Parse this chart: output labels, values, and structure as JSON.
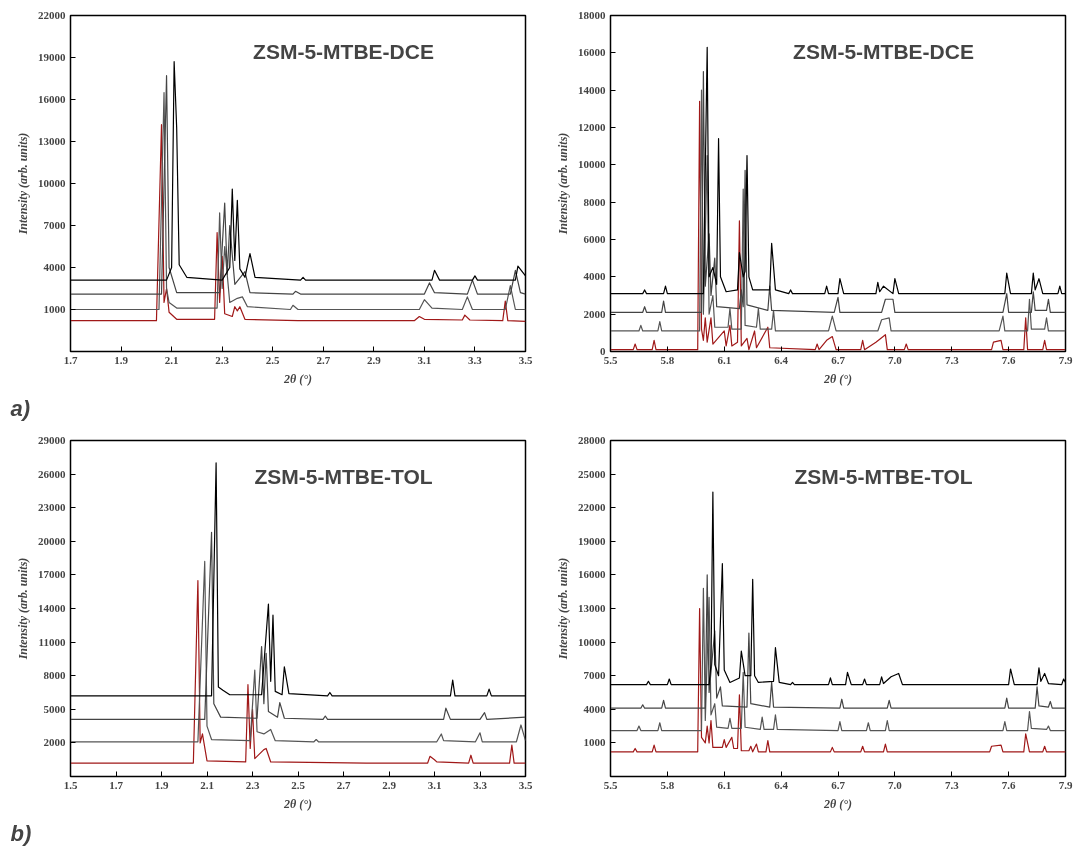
{
  "chart_data": [
    {
      "type": "line",
      "title": "ZSM-5-MTBE-DCE",
      "xlabel": "2θ (°)",
      "ylabel": "Intensity (arb. units)",
      "annotations": [
        "a)"
      ],
      "grid": false,
      "marker": "none",
      "line_style": "solid",
      "xlim": [
        1.7,
        3.5
      ],
      "xticks": [
        1.7,
        1.9,
        2.1,
        2.3,
        2.5,
        2.7,
        2.9,
        3.1,
        3.3,
        3.5
      ],
      "ylim": [
        -2000,
        22000
      ],
      "yticks": [
        1000,
        4000,
        7000,
        10000,
        13000,
        16000,
        19000,
        22000
      ],
      "series": [
        {
          "color": "#a01818",
          "x": [
            1.7,
            2.04,
            2.06,
            2.07,
            2.08,
            2.09,
            2.12,
            2.27,
            2.28,
            2.29,
            2.3,
            2.31,
            2.34,
            2.35,
            2.36,
            2.37,
            2.39,
            2.6,
            3.06,
            3.08,
            3.1,
            3.25,
            3.26,
            3.28,
            3.41,
            3.42,
            3.43,
            3.5
          ],
          "values": [
            200,
            200,
            14200,
            1500,
            2500,
            800,
            300,
            300,
            6500,
            1500,
            4800,
            700,
            500,
            1200,
            900,
            1200,
            300,
            200,
            200,
            500,
            300,
            250,
            600,
            250,
            200,
            1600,
            200,
            150
          ]
        },
        {
          "color": "#555555",
          "x": [
            1.7,
            2.05,
            2.07,
            2.08,
            2.09,
            2.12,
            2.28,
            2.29,
            2.3,
            2.31,
            2.33,
            2.36,
            2.38,
            2.4,
            2.57,
            2.58,
            2.6,
            3.08,
            3.1,
            3.13,
            3.25,
            3.27,
            3.29,
            3.42,
            3.44,
            3.46,
            3.5
          ],
          "values": [
            1000,
            1000,
            16500,
            2500,
            1500,
            1100,
            1100,
            7900,
            2500,
            5500,
            1500,
            1800,
            1900,
            1200,
            1000,
            1300,
            1000,
            1000,
            1700,
            1100,
            1000,
            1900,
            1000,
            1000,
            2700,
            1000,
            1000
          ]
        },
        {
          "color": "#444444",
          "x": [
            1.7,
            2.06,
            2.08,
            2.09,
            2.12,
            2.29,
            2.31,
            2.32,
            2.33,
            2.35,
            2.39,
            2.41,
            2.58,
            2.59,
            2.61,
            3.1,
            3.12,
            3.14,
            3.27,
            3.29,
            3.31,
            3.44,
            3.46,
            3.48,
            3.5
          ],
          "values": [
            2100,
            2100,
            17700,
            4000,
            2200,
            2200,
            8600,
            3500,
            7000,
            2800,
            3700,
            2200,
            2100,
            2300,
            2100,
            2100,
            2900,
            2200,
            2100,
            3100,
            2100,
            2100,
            3800,
            2200,
            2100
          ]
        },
        {
          "color": "#000000",
          "x": [
            1.7,
            2.08,
            2.1,
            2.11,
            2.12,
            2.13,
            2.16,
            2.3,
            2.33,
            2.34,
            2.35,
            2.36,
            2.37,
            2.39,
            2.41,
            2.43,
            2.61,
            2.62,
            2.63,
            3.13,
            3.14,
            3.16,
            3.29,
            3.3,
            3.31,
            3.46,
            3.47,
            3.5
          ],
          "values": [
            3100,
            3100,
            4000,
            18700,
            14000,
            4200,
            3300,
            3100,
            4000,
            9600,
            4500,
            8800,
            3900,
            3300,
            5000,
            3300,
            3100,
            3300,
            3100,
            3100,
            3800,
            3100,
            3100,
            3400,
            3100,
            3100,
            4100,
            3400
          ]
        }
      ]
    },
    {
      "type": "line",
      "title": "ZSM-5-MTBE-DCE",
      "xlabel": "2θ (°)",
      "ylabel": "Intensity (arb. units)",
      "grid": false,
      "marker": "none",
      "line_style": "solid",
      "xlim": [
        5.5,
        7.9
      ],
      "xticks": [
        5.5,
        5.8,
        6.1,
        6.4,
        6.7,
        {
          "value": 7.0,
          "label": "7.0"
        },
        7.3,
        7.6,
        7.9
      ],
      "ylim": [
        0,
        18000
      ],
      "yticks": [
        0,
        2000,
        4000,
        6000,
        8000,
        10000,
        12000,
        14000,
        16000,
        18000
      ],
      "series": [
        {
          "color": "#a01818",
          "x": [
            5.5,
            5.62,
            5.63,
            5.64,
            5.72,
            5.73,
            5.74,
            5.96,
            5.97,
            5.98,
            5.99,
            6.0,
            6.01,
            6.03,
            6.04,
            6.1,
            6.11,
            6.13,
            6.14,
            6.17,
            6.18,
            6.19,
            6.22,
            6.23,
            6.26,
            6.27,
            6.33,
            6.34,
            6.58,
            6.59,
            6.6,
            6.64,
            6.67,
            6.69,
            6.82,
            6.83,
            6.84,
            6.9,
            6.95,
            6.96,
            7.05,
            7.06,
            7.07,
            7.51,
            7.52,
            7.56,
            7.57,
            7.68,
            7.69,
            7.7,
            7.78,
            7.79,
            7.8,
            7.9
          ],
          "values": [
            100,
            100,
            400,
            100,
            100,
            600,
            100,
            100,
            13400,
            1200,
            600,
            1800,
            500,
            1800,
            400,
            1100,
            300,
            1400,
            300,
            500,
            7000,
            300,
            700,
            100,
            1100,
            200,
            1300,
            200,
            100,
            400,
            100,
            600,
            800,
            100,
            100,
            600,
            100,
            500,
            900,
            100,
            100,
            400,
            100,
            100,
            500,
            600,
            100,
            100,
            1800,
            100,
            100,
            600,
            100,
            100
          ]
        },
        {
          "color": "#555555",
          "x": [
            5.5,
            5.65,
            5.66,
            5.67,
            5.75,
            5.76,
            5.77,
            5.97,
            5.98,
            5.99,
            6.01,
            6.02,
            6.04,
            6.05,
            6.12,
            6.13,
            6.14,
            6.19,
            6.2,
            6.21,
            6.27,
            6.28,
            6.29,
            6.35,
            6.36,
            6.37,
            6.65,
            6.67,
            6.69,
            6.91,
            6.93,
            6.97,
            6.98,
            7.55,
            7.57,
            7.58,
            7.7,
            7.71,
            7.72,
            7.79,
            7.8,
            7.81,
            7.9
          ],
          "values": [
            1100,
            1100,
            1400,
            1100,
            1100,
            1600,
            1100,
            1100,
            14000,
            2000,
            10500,
            2000,
            3000,
            1300,
            1300,
            2300,
            1200,
            1200,
            8700,
            1400,
            1300,
            2300,
            1200,
            1200,
            2200,
            1100,
            1100,
            1900,
            1100,
            1100,
            1700,
            1800,
            1100,
            1100,
            1900,
            1100,
            1100,
            2800,
            1200,
            1200,
            1800,
            1100,
            1100
          ]
        },
        {
          "color": "#444444",
          "x": [
            5.5,
            5.67,
            5.68,
            5.69,
            5.77,
            5.78,
            5.79,
            5.98,
            5.99,
            6.0,
            6.02,
            6.03,
            6.05,
            6.06,
            6.18,
            6.19,
            6.2,
            6.21,
            6.22,
            6.33,
            6.34,
            6.35,
            6.68,
            6.7,
            6.71,
            6.93,
            6.95,
            6.99,
            7.0,
            7.57,
            7.59,
            7.6,
            7.72,
            7.73,
            7.74,
            7.8,
            7.81,
            7.82,
            7.9
          ],
          "values": [
            2100,
            2100,
            2400,
            2100,
            2100,
            2700,
            2100,
            2100,
            15000,
            3500,
            6300,
            3000,
            5000,
            2400,
            2300,
            3300,
            2400,
            9700,
            2500,
            2200,
            3500,
            2200,
            2100,
            2900,
            2100,
            2100,
            2800,
            2800,
            2100,
            2100,
            3100,
            2100,
            2100,
            3200,
            2200,
            2200,
            2800,
            2100,
            2100
          ]
        },
        {
          "color": "#000000",
          "x": [
            5.5,
            5.67,
            5.68,
            5.69,
            5.78,
            5.79,
            5.8,
            5.99,
            6.01,
            6.02,
            6.04,
            6.06,
            6.07,
            6.08,
            6.11,
            6.17,
            6.18,
            6.2,
            6.21,
            6.22,
            6.23,
            6.25,
            6.34,
            6.35,
            6.37,
            6.44,
            6.45,
            6.46,
            6.63,
            6.64,
            6.65,
            6.7,
            6.71,
            6.73,
            6.9,
            6.91,
            6.92,
            6.94,
            6.99,
            7.0,
            7.02,
            7.58,
            7.59,
            7.61,
            7.72,
            7.73,
            7.74,
            7.76,
            7.78,
            7.86,
            7.87,
            7.88,
            7.9
          ],
          "values": [
            3100,
            3100,
            3300,
            3100,
            3100,
            3500,
            3100,
            3100,
            16300,
            4000,
            4500,
            3600,
            11400,
            4000,
            3200,
            3300,
            5300,
            4000,
            4300,
            10500,
            4000,
            3300,
            3300,
            5800,
            3300,
            3100,
            3300,
            3100,
            3100,
            3500,
            3100,
            3100,
            3900,
            3100,
            3100,
            3700,
            3200,
            3500,
            3100,
            3900,
            3100,
            3100,
            4200,
            3100,
            3100,
            4200,
            3300,
            3900,
            3100,
            3100,
            3500,
            3100,
            3100
          ]
        }
      ]
    },
    {
      "type": "line",
      "title": "ZSM-5-MTBE-TOL",
      "xlabel": "2θ (°)",
      "ylabel": "Intensity (arb. units)",
      "annotations": [
        "b)"
      ],
      "grid": false,
      "marker": "none",
      "line_style": "solid",
      "xlim": [
        1.5,
        3.5
      ],
      "xticks": [
        1.5,
        1.7,
        1.9,
        2.1,
        2.3,
        2.5,
        2.7,
        2.9,
        3.1,
        3.3,
        3.5
      ],
      "ylim": [
        -1000,
        29000
      ],
      "yticks": [
        2000,
        5000,
        8000,
        11000,
        14000,
        17000,
        20000,
        23000,
        26000,
        29000
      ],
      "series": [
        {
          "color": "#a01818",
          "x": [
            1.5,
            2.04,
            2.06,
            2.07,
            2.08,
            2.1,
            2.27,
            2.28,
            2.29,
            2.3,
            2.31,
            2.35,
            2.36,
            2.38,
            2.8,
            3.07,
            3.08,
            3.1,
            3.11,
            3.25,
            3.26,
            3.27,
            3.43,
            3.44,
            3.45,
            3.5
          ],
          "values": [
            200,
            200,
            16500,
            2000,
            2800,
            400,
            300,
            7200,
            1500,
            5000,
            600,
            1400,
            1500,
            300,
            200,
            200,
            800,
            500,
            300,
            200,
            900,
            200,
            200,
            1800,
            200,
            200
          ]
        },
        {
          "color": "#555555",
          "x": [
            1.5,
            2.06,
            2.09,
            2.1,
            2.12,
            2.29,
            2.31,
            2.32,
            2.35,
            2.38,
            2.4,
            2.57,
            2.58,
            2.59,
            3.11,
            3.13,
            3.14,
            3.28,
            3.3,
            3.31,
            3.46,
            3.48,
            3.5
          ],
          "values": [
            2100,
            2100,
            18200,
            3500,
            2300,
            2200,
            8500,
            3000,
            2800,
            3200,
            2200,
            2100,
            2300,
            2100,
            2100,
            2800,
            2200,
            2100,
            2900,
            2100,
            2100,
            3600,
            2200
          ]
        },
        {
          "color": "#444444",
          "x": [
            1.5,
            2.09,
            2.12,
            2.13,
            2.16,
            2.32,
            2.34,
            2.35,
            2.36,
            2.37,
            2.41,
            2.42,
            2.44,
            2.61,
            2.62,
            2.63,
            3.14,
            3.15,
            3.17,
            3.3,
            3.32,
            3.33,
            3.5
          ],
          "values": [
            4100,
            4100,
            20800,
            5500,
            4300,
            4200,
            10600,
            5500,
            10000,
            4800,
            4300,
            5600,
            4200,
            4100,
            4400,
            4100,
            4100,
            5100,
            4100,
            4100,
            4700,
            4100,
            4300
          ]
        },
        {
          "color": "#000000",
          "x": [
            1.5,
            2.12,
            2.14,
            2.15,
            2.17,
            2.2,
            2.34,
            2.37,
            2.38,
            2.39,
            2.4,
            2.43,
            2.44,
            2.46,
            2.63,
            2.64,
            2.65,
            3.17,
            3.18,
            3.19,
            3.33,
            3.34,
            3.35,
            3.5
          ],
          "values": [
            6200,
            6200,
            27000,
            7000,
            6700,
            6300,
            6300,
            14400,
            7500,
            13400,
            6600,
            6300,
            8800,
            6400,
            6200,
            6500,
            6200,
            6200,
            7600,
            6200,
            6200,
            6800,
            6200,
            6200
          ]
        }
      ]
    },
    {
      "type": "line",
      "title": "ZSM-5-MTBE-TOL",
      "xlabel": "2θ (°)",
      "ylabel": "Intensity (arb. units)",
      "grid": false,
      "marker": "none",
      "line_style": "solid",
      "xlim": [
        5.5,
        7.9
      ],
      "xticks": [
        5.5,
        5.8,
        6.1,
        6.4,
        6.7,
        {
          "value": 7.0,
          "label": "7.0"
        },
        7.3,
        7.6,
        7.9
      ],
      "ylim": [
        -2000,
        28000
      ],
      "yticks": [
        1000,
        4000,
        7000,
        10000,
        13000,
        16000,
        19000,
        22000,
        25000,
        28000
      ],
      "series": [
        {
          "color": "#a01818",
          "x": [
            5.5,
            5.62,
            5.63,
            5.64,
            5.72,
            5.73,
            5.74,
            5.96,
            5.97,
            5.98,
            6.0,
            6.01,
            6.02,
            6.03,
            6.04,
            6.09,
            6.1,
            6.11,
            6.14,
            6.15,
            6.17,
            6.18,
            6.19,
            6.23,
            6.24,
            6.25,
            6.27,
            6.28,
            6.32,
            6.33,
            6.34,
            6.66,
            6.67,
            6.68,
            6.82,
            6.83,
            6.84,
            6.94,
            6.95,
            6.96,
            7.5,
            7.51,
            7.56,
            7.57,
            7.68,
            7.69,
            7.71,
            7.78,
            7.79,
            7.8,
            7.9
          ],
          "values": [
            200,
            200,
            500,
            200,
            200,
            800,
            200,
            200,
            13000,
            1500,
            1000,
            2500,
            1000,
            3000,
            600,
            600,
            1300,
            600,
            1500,
            500,
            500,
            5300,
            300,
            300,
            700,
            200,
            900,
            200,
            200,
            1200,
            200,
            200,
            600,
            200,
            200,
            700,
            200,
            200,
            900,
            200,
            200,
            700,
            800,
            200,
            200,
            1800,
            200,
            200,
            700,
            200,
            200
          ]
        },
        {
          "color": "#555555",
          "x": [
            5.5,
            5.64,
            5.65,
            5.66,
            5.75,
            5.76,
            5.77,
            5.98,
            5.99,
            6.0,
            6.02,
            6.03,
            6.05,
            6.06,
            6.12,
            6.13,
            6.14,
            6.19,
            6.2,
            6.21,
            6.29,
            6.3,
            6.31,
            6.36,
            6.37,
            6.38,
            6.7,
            6.71,
            6.72,
            6.85,
            6.86,
            6.87,
            6.95,
            6.96,
            6.97,
            7.57,
            7.58,
            7.59,
            7.7,
            7.71,
            7.72,
            7.8,
            7.81,
            7.82,
            7.9
          ],
          "values": [
            2100,
            2100,
            2500,
            2100,
            2100,
            2800,
            2100,
            2100,
            14800,
            3000,
            14000,
            3500,
            4500,
            2400,
            2300,
            3200,
            2300,
            2300,
            7300,
            2400,
            2200,
            3300,
            2200,
            2200,
            3500,
            2200,
            2100,
            2900,
            2100,
            2100,
            2800,
            2100,
            2100,
            3000,
            2100,
            2100,
            2900,
            2100,
            2100,
            3800,
            2300,
            2200,
            2500,
            2100,
            2100
          ]
        },
        {
          "color": "#444444",
          "x": [
            5.5,
            5.66,
            5.67,
            5.68,
            5.77,
            5.78,
            5.79,
            6.0,
            6.01,
            6.02,
            6.05,
            6.06,
            6.08,
            6.09,
            6.22,
            6.23,
            6.24,
            6.34,
            6.35,
            6.36,
            6.71,
            6.72,
            6.73,
            6.96,
            6.97,
            6.98,
            7.58,
            7.59,
            7.6,
            7.74,
            7.75,
            7.76,
            7.81,
            7.82,
            7.83,
            7.9
          ],
          "values": [
            4100,
            4100,
            4400,
            4100,
            4100,
            4800,
            4100,
            4100,
            16000,
            5500,
            11000,
            5000,
            6000,
            4300,
            4200,
            10800,
            4500,
            4200,
            6400,
            4200,
            4100,
            4900,
            4100,
            4100,
            4800,
            4100,
            4100,
            5000,
            4100,
            4100,
            6000,
            4300,
            4200,
            4700,
            4100,
            4100
          ]
        },
        {
          "color": "#000000",
          "x": [
            5.5,
            5.69,
            5.7,
            5.71,
            5.8,
            5.81,
            5.82,
            6.02,
            6.03,
            6.04,
            6.05,
            6.07,
            6.09,
            6.1,
            6.13,
            6.18,
            6.19,
            6.21,
            6.24,
            6.25,
            6.26,
            6.28,
            6.36,
            6.37,
            6.39,
            6.45,
            6.46,
            6.47,
            6.65,
            6.66,
            6.67,
            6.74,
            6.75,
            6.77,
            6.83,
            6.84,
            6.85,
            6.92,
            6.93,
            6.94,
            6.98,
            7.02,
            7.04,
            7.6,
            7.61,
            7.63,
            7.75,
            7.76,
            7.77,
            7.79,
            7.81,
            7.88,
            7.89,
            7.9
          ],
          "values": [
            6200,
            6200,
            6500,
            6200,
            6200,
            6700,
            6200,
            6200,
            8000,
            23400,
            8000,
            7000,
            17000,
            7500,
            6400,
            6800,
            9200,
            7000,
            7000,
            15600,
            7000,
            6400,
            6500,
            9500,
            6400,
            6200,
            6400,
            6200,
            6200,
            6800,
            6200,
            6200,
            7300,
            6200,
            6200,
            6700,
            6200,
            6200,
            6900,
            6300,
            6900,
            7200,
            6200,
            6200,
            7600,
            6200,
            6200,
            7700,
            6500,
            7200,
            6300,
            6200,
            6700,
            6400
          ]
        }
      ]
    }
  ]
}
